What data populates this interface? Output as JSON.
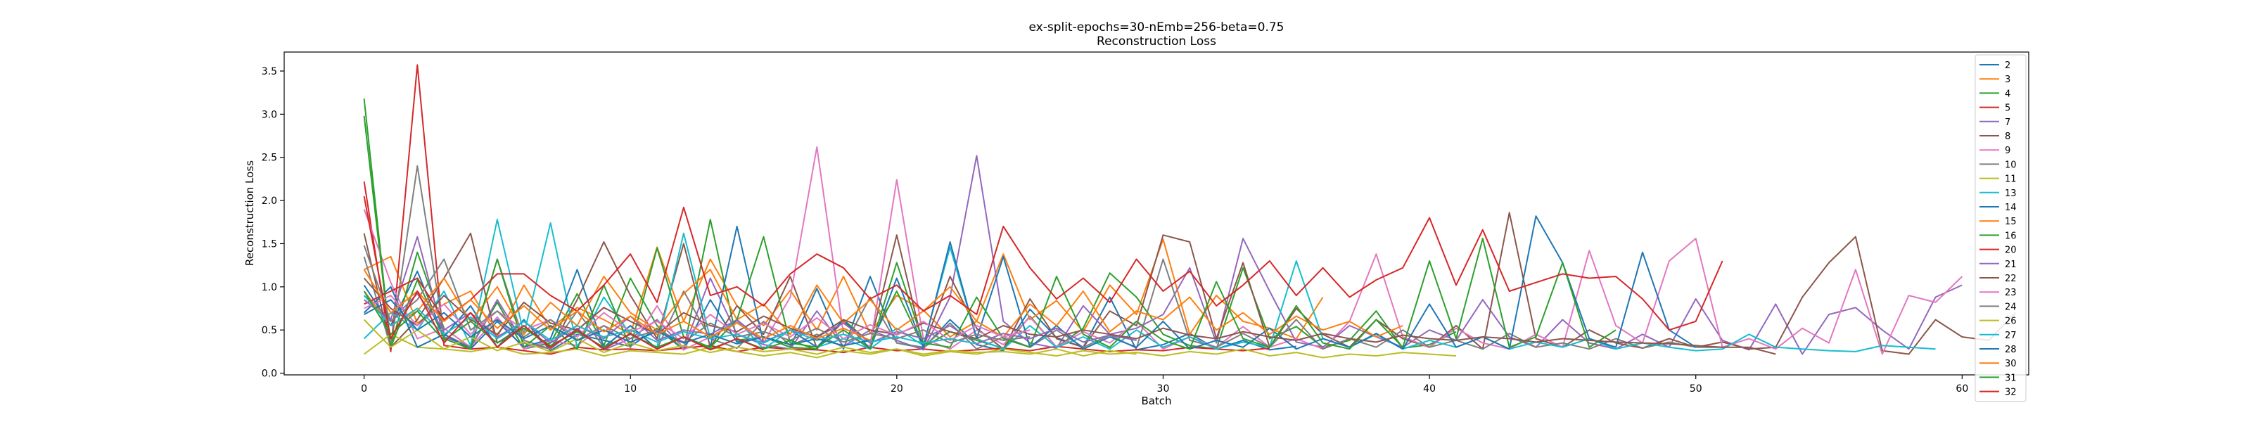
{
  "chart_data": {
    "type": "line",
    "title": "ex-split-epochs=30-nEmb=256-beta=0.75",
    "subtitle": "Reconstruction Loss",
    "xlabel": "Batch",
    "ylabel": "Reconstruction Loss",
    "xlim": [
      -3,
      62.5
    ],
    "ylim": [
      -0.02,
      3.72
    ],
    "xticks": [
      0,
      10,
      20,
      30,
      40,
      50,
      60
    ],
    "yticks": [
      0.0,
      0.5,
      1.0,
      1.5,
      2.0,
      2.5,
      3.0,
      3.5
    ],
    "legend_position": "upper-right",
    "grid": false,
    "series": [
      {
        "name": "2",
        "color": "#1f77b4",
        "values": [
          1.02,
          0.55,
          1.18,
          0.42,
          0.78,
          0.3,
          0.62,
          0.26,
          0.45,
          0.38,
          0.31,
          0.52,
          0.27,
          0.85,
          0.36,
          0.42,
          0.3,
          0.98,
          0.28,
          1.12,
          0.35,
          0.29,
          0.62,
          0.33,
          0.26,
          0.74,
          0.41,
          0.3,
          0.88,
          0.27,
          0.33,
          0.46,
          0.28,
          0.38,
          0.27,
          0.31
        ]
      },
      {
        "name": "3",
        "color": "#ff7f0e",
        "values": [
          1.2,
          1.35,
          0.58,
          0.8,
          0.95,
          0.42,
          1.02,
          0.52,
          0.76,
          0.62,
          0.45,
          1.46,
          0.6,
          1.32,
          0.78,
          0.55,
          0.96,
          0.5,
          1.12,
          0.46,
          0.9,
          0.73,
          0.42,
          0.6,
          1.38,
          0.62,
          0.84,
          0.48,
          1.02,
          0.68,
          1.55,
          0.45,
          0.9,
          0.6,
          0.52,
          0.4,
          0.88
        ]
      },
      {
        "name": "4",
        "color": "#2ca02c",
        "values": [
          2.98,
          0.3,
          1.4,
          0.52,
          0.3,
          0.82,
          0.28,
          0.35,
          0.92,
          0.32,
          1.1,
          0.55,
          0.27,
          1.78,
          0.38,
          0.42,
          0.3,
          0.28,
          0.62,
          0.35,
          0.95,
          0.3,
          0.48,
          0.38,
          0.29,
          0.66,
          0.3,
          0.52,
          1.16,
          0.88,
          0.45,
          0.32,
          0.28,
          1.22,
          0.4,
          0.54,
          0.3,
          0.38,
          0.72,
          0.29,
          0.33,
          0.48
        ]
      },
      {
        "name": "5",
        "color": "#d62728",
        "values": [
          2.22,
          0.25,
          3.57,
          0.32,
          0.28,
          0.3,
          0.26,
          0.22,
          0.3,
          0.27,
          0.28,
          0.26,
          0.29,
          0.32,
          0.25,
          0.3,
          0.28,
          0.27,
          0.24,
          0.3,
          0.26,
          0.28,
          0.25,
          0.27,
          0.29,
          0.26,
          0.31,
          0.28,
          0.25,
          0.27,
          0.26,
          0.3,
          0.28,
          0.26,
          0.29
        ]
      },
      {
        "name": "7",
        "color": "#9467bd",
        "values": [
          0.9,
          0.62,
          1.58,
          0.42,
          0.3,
          0.85,
          0.35,
          0.28,
          0.52,
          0.27,
          0.4,
          0.62,
          0.29,
          1.1,
          0.45,
          0.33,
          0.28,
          0.72,
          0.31,
          0.5,
          0.38,
          0.27,
          0.88,
          2.52,
          0.6,
          0.35,
          0.29,
          0.78,
          0.45,
          0.52,
          0.68,
          1.22,
          0.35,
          1.56,
          0.95,
          0.36,
          0.3,
          0.55,
          0.42,
          0.3,
          0.5,
          0.38,
          0.85,
          0.42,
          0.3,
          0.62,
          0.35,
          0.28,
          0.45,
          0.3,
          0.86,
          0.38,
          0.27,
          0.8,
          0.22,
          0.68,
          0.76,
          0.5,
          0.28,
          0.88,
          1.02
        ]
      },
      {
        "name": "8",
        "color": "#8c564b",
        "values": [
          1.62,
          0.3,
          0.62,
          1.1,
          1.62,
          0.35,
          0.55,
          0.28,
          0.85,
          1.52,
          0.9,
          0.4,
          1.5,
          0.3,
          0.78,
          0.45,
          1.12,
          0.29,
          0.6,
          0.35,
          1.6,
          0.3,
          1.12,
          0.52,
          0.28,
          0.86,
          0.4,
          0.3,
          0.72,
          0.55,
          1.6,
          1.52,
          0.4,
          1.28,
          0.3,
          0.75,
          0.45,
          0.3,
          0.62,
          0.4,
          0.3,
          0.55,
          0.28,
          1.86,
          0.4,
          0.3,
          0.5,
          0.35,
          0.29,
          0.4,
          0.3,
          0.36,
          0.28,
          0.3,
          0.88,
          1.28,
          1.58,
          0.26,
          0.22,
          0.62,
          0.42,
          0.38,
          0.7
        ]
      },
      {
        "name": "9",
        "color": "#e377c2",
        "values": [
          1.9,
          1.05,
          0.4,
          0.52,
          0.3,
          0.65,
          0.28,
          0.38,
          0.32,
          0.55,
          0.3,
          0.78,
          0.27,
          0.42,
          0.6,
          0.35,
          0.88,
          2.62,
          0.45,
          0.31,
          2.24,
          0.4,
          0.28,
          0.5,
          0.33,
          0.65,
          0.3,
          0.48,
          0.35,
          0.6,
          0.28,
          0.42,
          0.3,
          0.54,
          0.3,
          0.4,
          0.28,
          0.6,
          1.38,
          0.42,
          0.3,
          0.52,
          0.35,
          0.28,
          0.45,
          0.3,
          1.42,
          0.55,
          0.35,
          1.3,
          1.56,
          0.3,
          0.4,
          0.28,
          0.52,
          0.35,
          1.2,
          0.22,
          0.9,
          0.82,
          1.12
        ]
      },
      {
        "name": "10",
        "color": "#7f7f7f",
        "values": [
          1.35,
          0.3,
          2.4,
          0.45,
          0.3,
          1.32,
          0.38,
          0.28,
          0.72,
          0.3,
          0.55,
          0.28,
          0.95,
          0.4,
          0.29,
          0.6,
          0.32,
          0.45,
          0.3,
          0.88,
          0.35,
          0.3,
          0.58,
          0.28,
          0.42,
          0.3,
          0.5,
          0.3,
          0.44,
          0.29,
          1.32,
          0.38,
          0.3,
          0.46,
          0.3,
          0.62,
          0.28,
          0.4,
          0.3,
          0.5,
          0.3,
          0.38,
          0.28,
          0.46,
          0.3,
          0.35,
          0.28,
          0.4,
          0.29,
          0.36,
          0.3,
          0.3
        ]
      },
      {
        "name": "11",
        "color": "#bcbd22",
        "values": [
          0.22,
          0.45,
          0.3,
          0.28,
          0.25,
          0.3,
          0.22,
          0.24,
          0.28,
          0.2,
          0.26,
          0.24,
          0.22,
          0.3,
          0.25,
          0.2,
          0.24,
          0.18,
          0.26,
          0.22,
          0.28,
          0.2,
          0.25,
          0.22,
          0.28,
          0.24,
          0.2,
          0.26,
          0.22,
          0.24,
          0.2,
          0.25,
          0.22,
          0.28,
          0.2,
          0.24,
          0.18,
          0.22,
          0.2,
          0.24,
          0.22,
          0.2
        ]
      },
      {
        "name": "13",
        "color": "#17becf",
        "values": [
          0.4,
          0.7,
          0.5,
          0.95,
          0.32,
          1.78,
          0.45,
          1.74,
          0.3,
          0.88,
          0.45,
          0.3,
          1.62,
          0.4,
          0.62,
          0.28,
          0.5,
          0.3,
          0.4,
          0.28,
          0.52,
          0.32,
          1.46,
          0.4,
          0.28,
          0.55,
          0.3,
          0.42,
          0.28,
          0.5,
          0.3,
          0.42,
          0.28,
          0.36,
          0.3,
          1.3,
          0.4,
          0.3,
          0.45,
          0.28,
          0.38,
          0.3,
          0.42,
          0.28,
          0.36,
          0.3,
          0.4,
          0.28,
          0.35,
          0.3,
          0.26,
          0.28,
          0.45,
          0.3,
          0.28,
          0.26,
          0.25,
          0.32,
          0.3,
          0.28
        ]
      },
      {
        "name": "14",
        "color": "#1f77b4",
        "values": [
          0.7,
          1.0,
          0.3,
          0.45,
          0.28,
          0.6,
          0.3,
          0.4,
          1.2,
          0.3,
          0.55,
          0.28,
          0.42,
          0.3,
          1.7,
          0.35,
          0.5,
          0.3,
          0.62,
          0.28,
          1.1,
          0.3,
          1.52,
          0.4,
          1.35,
          0.3,
          0.55,
          0.28,
          0.42,
          0.3,
          0.6,
          0.28,
          0.38,
          0.3,
          0.52,
          0.28,
          0.4,
          0.3,
          0.46,
          0.28,
          0.8,
          0.3,
          0.42,
          0.28,
          1.82,
          1.28,
          0.4,
          0.3,
          1.4,
          0.5,
          0.3
        ]
      },
      {
        "name": "15",
        "color": "#ff7f0e",
        "values": [
          0.95,
          0.55,
          0.72,
          1.1,
          0.6,
          1.0,
          0.45,
          0.82,
          0.55,
          1.12,
          0.7,
          0.5,
          0.92,
          1.2,
          0.62,
          0.8,
          0.45,
          1.02,
          0.58,
          0.85,
          0.5,
          0.72,
          1.0,
          0.6,
          0.42,
          0.8,
          0.55,
          0.95,
          0.48,
          0.72,
          0.62,
          0.88,
          0.5,
          0.7,
          0.45,
          0.66,
          0.5,
          0.6,
          0.42,
          0.55
        ]
      },
      {
        "name": "16",
        "color": "#2ca02c",
        "values": [
          3.18,
          0.3,
          1.08,
          0.4,
          0.28,
          1.32,
          0.3,
          0.55,
          0.28,
          1.02,
          0.3,
          1.45,
          0.42,
          0.3,
          0.62,
          1.58,
          0.35,
          0.3,
          0.5,
          0.28,
          1.28,
          0.35,
          0.3,
          0.88,
          0.4,
          0.3,
          1.12,
          0.45,
          0.3,
          0.6,
          0.38,
          0.28,
          1.06,
          0.4,
          0.3,
          0.78,
          0.35,
          0.28,
          0.62,
          0.3,
          1.3,
          0.4,
          1.56,
          0.3,
          0.42,
          1.28,
          0.3,
          0.5
        ]
      },
      {
        "name": "20",
        "color": "#d62728",
        "values": [
          0.8,
          0.95,
          1.1,
          0.62,
          0.85,
          1.15,
          1.15,
          0.9,
          0.72,
          1.02,
          1.38,
          0.82,
          1.92,
          0.9,
          1.0,
          0.78,
          1.15,
          1.38,
          1.22,
          0.86,
          1.02,
          0.72,
          0.9,
          0.68,
          1.7,
          1.22,
          0.86,
          1.1,
          0.82,
          1.32,
          0.95,
          1.18,
          0.78,
          1.02,
          1.3,
          0.9,
          1.22,
          0.88,
          1.08,
          1.22,
          1.8,
          1.02,
          1.66,
          0.95,
          1.05,
          1.15,
          1.1,
          1.12,
          0.86,
          0.5,
          0.6,
          1.3
        ]
      },
      {
        "name": "21",
        "color": "#9467bd",
        "values": [
          0.85,
          0.6,
          0.92,
          0.5,
          0.7,
          0.42,
          0.6,
          0.35,
          0.55,
          0.4,
          0.66,
          0.38,
          0.5,
          0.45,
          0.62,
          0.36,
          0.5,
          0.42,
          0.58,
          0.35,
          0.48,
          0.4,
          0.55,
          0.34,
          0.46,
          0.4,
          0.52,
          0.36,
          0.44,
          0.38
        ]
      },
      {
        "name": "22",
        "color": "#8c564b",
        "values": [
          1.1,
          0.75,
          0.55,
          0.9,
          0.62,
          0.45,
          0.82,
          0.58,
          0.5,
          0.76,
          0.6,
          0.45,
          0.7,
          0.55,
          0.48,
          0.66,
          0.52,
          0.42,
          0.62,
          0.5,
          0.45,
          0.58,
          0.48,
          0.4,
          0.55,
          0.45,
          0.42,
          0.5,
          0.45,
          0.4,
          0.52,
          0.44,
          0.4,
          0.48,
          0.42,
          0.38,
          0.46,
          0.4,
          0.36,
          0.44,
          0.4,
          0.38,
          0.42,
          0.4,
          0.36,
          0.4,
          0.38,
          0.36,
          0.35,
          0.34,
          0.32,
          0.3,
          0.3,
          0.22
        ]
      },
      {
        "name": "23",
        "color": "#e377c2",
        "values": [
          0.75,
          0.9,
          0.55,
          0.8,
          0.45,
          0.72,
          0.5,
          0.62,
          0.42,
          0.7,
          0.48,
          0.6,
          0.4,
          0.68,
          0.45,
          0.58,
          0.42,
          0.64,
          0.4,
          0.56,
          0.44,
          0.6,
          0.38,
          0.55,
          0.42,
          0.5
        ]
      },
      {
        "name": "24",
        "color": "#7f7f7f",
        "values": [
          1.48,
          0.6,
          0.85,
          1.32,
          0.5,
          0.72,
          0.42,
          0.62,
          0.38,
          0.55,
          0.4,
          0.5,
          0.36,
          0.58,
          0.42,
          0.48,
          0.38,
          0.52,
          0.36,
          0.46,
          0.4,
          0.5,
          0.35,
          0.45,
          0.38,
          0.42
        ]
      },
      {
        "name": "26",
        "color": "#bcbd22",
        "values": [
          0.62,
          0.3,
          0.5,
          0.28,
          0.42,
          0.26,
          0.36,
          0.25,
          0.4,
          0.24,
          0.35,
          0.26,
          0.32,
          0.24,
          0.3,
          0.25,
          0.28,
          0.22,
          0.3,
          0.24,
          0.28,
          0.22,
          0.26,
          0.24,
          0.25,
          0.22,
          0.28,
          0.2,
          0.26,
          0.22
        ]
      },
      {
        "name": "27",
        "color": "#17becf",
        "values": [
          0.9,
          0.55,
          0.75,
          0.45,
          0.65,
          0.4,
          0.6,
          0.38,
          0.55,
          0.42,
          0.5,
          0.36,
          0.48,
          0.4,
          0.45,
          0.35,
          0.5,
          0.38,
          0.45,
          0.36,
          0.42,
          0.35,
          0.4,
          0.34
        ]
      },
      {
        "name": "28",
        "color": "#1f77b4",
        "values": [
          0.68,
          0.85,
          0.5,
          0.7,
          0.42,
          0.62,
          0.4,
          0.55,
          0.38,
          0.5,
          0.36,
          0.48,
          0.35,
          0.45,
          0.34,
          0.42,
          0.33,
          0.4,
          0.32,
          0.38
        ]
      },
      {
        "name": "30",
        "color": "#ff7f0e",
        "values": [
          1.2,
          0.7,
          0.95,
          0.6,
          0.85,
          0.52,
          0.78,
          0.5,
          0.72,
          0.48,
          0.66,
          0.45,
          0.6,
          0.42,
          0.58,
          0.4,
          0.55,
          0.4,
          0.52,
          0.38
        ]
      },
      {
        "name": "31",
        "color": "#2ca02c",
        "values": [
          0.95,
          0.45,
          0.72,
          0.38,
          0.6,
          0.35,
          0.52,
          0.32,
          0.48,
          0.3,
          0.45,
          0.3,
          0.42,
          0.28,
          0.4,
          0.28,
          0.38,
          0.27
        ]
      },
      {
        "name": "32",
        "color": "#d62728",
        "values": [
          2.05,
          0.4,
          0.95,
          0.35,
          0.7,
          0.3,
          0.55,
          0.3,
          0.5,
          0.28,
          0.46,
          0.28,
          0.42,
          0.27,
          0.4,
          0.27
        ]
      }
    ]
  }
}
